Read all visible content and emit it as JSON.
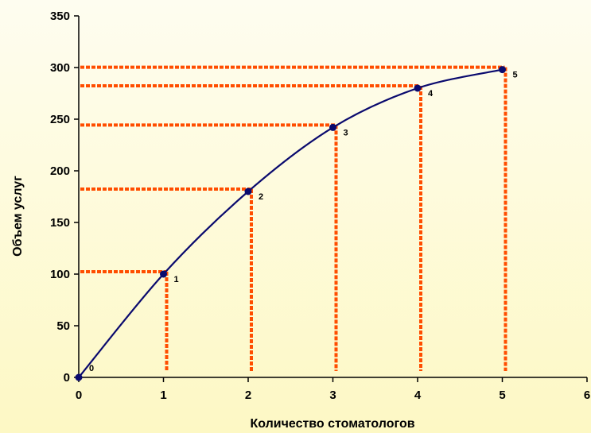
{
  "chart_data": {
    "type": "line",
    "xlabel": "Количество стоматологов",
    "ylabel": "Объем услуг",
    "xlim": [
      0,
      6
    ],
    "ylim": [
      0,
      350
    ],
    "xticks": [
      "0",
      "1",
      "2",
      "3",
      "4",
      "5",
      "6"
    ],
    "yticks": [
      "0",
      "50",
      "100",
      "150",
      "200",
      "250",
      "300",
      "350"
    ],
    "grid": false,
    "series": [
      {
        "values": [
          {
            "x": 0,
            "y": 0,
            "label": "0"
          },
          {
            "x": 1,
            "y": 100,
            "label": "1"
          },
          {
            "x": 2,
            "y": 180,
            "label": "2"
          },
          {
            "x": 3,
            "y": 242,
            "label": "3"
          },
          {
            "x": 4,
            "y": 280,
            "label": "4"
          },
          {
            "x": 5,
            "y": 298,
            "label": "5"
          }
        ]
      }
    ],
    "colors": {
      "line": "#0a0a6e",
      "marker": "#0a0a6e",
      "guide": "#ff4d00",
      "axis": "#000000"
    }
  }
}
